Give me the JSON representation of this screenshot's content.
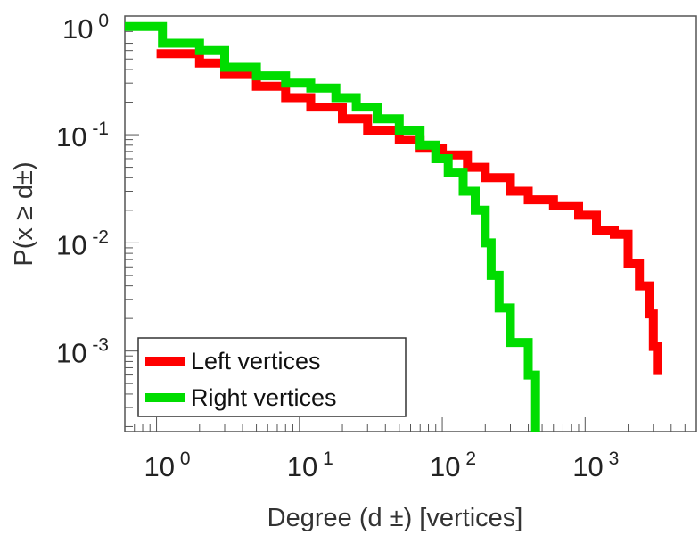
{
  "chart_data": {
    "type": "line",
    "scale": {
      "x": "log",
      "y": "log"
    },
    "title": "",
    "xlabel": "Degree (d  ±) [vertices]",
    "ylabel": "P(x ≥ d±)",
    "xlim": [
      0.6,
      6000
    ],
    "ylim": [
      0.00018,
      1.25
    ],
    "x_ticks": [
      {
        "value": 1,
        "base": "10",
        "exp": "0"
      },
      {
        "value": 10,
        "base": "10",
        "exp": "1"
      },
      {
        "value": 100,
        "base": "10",
        "exp": "2"
      },
      {
        "value": 1000,
        "base": "10",
        "exp": "3"
      }
    ],
    "y_ticks": [
      {
        "value": 1,
        "base": "10",
        "exp": "0"
      },
      {
        "value": 0.1,
        "base": "10",
        "exp": "-1"
      },
      {
        "value": 0.01,
        "base": "10",
        "exp": "-2"
      },
      {
        "value": 0.001,
        "base": "10",
        "exp": "-3"
      }
    ],
    "legend_position": "bottom-left",
    "series": [
      {
        "name": "Left vertices",
        "color": "#ff0000",
        "points": [
          [
            1,
            0.56
          ],
          [
            2,
            0.46
          ],
          [
            3,
            0.36
          ],
          [
            5,
            0.28
          ],
          [
            8,
            0.22
          ],
          [
            12,
            0.18
          ],
          [
            20,
            0.14
          ],
          [
            30,
            0.11
          ],
          [
            50,
            0.09
          ],
          [
            70,
            0.075
          ],
          [
            100,
            0.065
          ],
          [
            150,
            0.05
          ],
          [
            200,
            0.04
          ],
          [
            300,
            0.03
          ],
          [
            400,
            0.025
          ],
          [
            600,
            0.022
          ],
          [
            900,
            0.018
          ],
          [
            1200,
            0.013
          ],
          [
            1600,
            0.012
          ],
          [
            2000,
            0.0065
          ],
          [
            2400,
            0.004
          ],
          [
            2800,
            0.0022
          ],
          [
            3000,
            0.0011
          ],
          [
            3200,
            0.0006
          ]
        ]
      },
      {
        "name": "Right vertices",
        "color": "#00dd00",
        "points": [
          [
            0.6,
            1.0
          ],
          [
            1,
            1.0
          ],
          [
            1.1,
            0.7
          ],
          [
            2,
            0.6
          ],
          [
            3,
            0.42
          ],
          [
            5,
            0.35
          ],
          [
            8,
            0.3
          ],
          [
            12,
            0.27
          ],
          [
            18,
            0.22
          ],
          [
            25,
            0.18
          ],
          [
            35,
            0.14
          ],
          [
            50,
            0.11
          ],
          [
            70,
            0.08
          ],
          [
            90,
            0.06
          ],
          [
            110,
            0.045
          ],
          [
            140,
            0.03
          ],
          [
            170,
            0.02
          ],
          [
            200,
            0.01
          ],
          [
            220,
            0.005
          ],
          [
            250,
            0.0025
          ],
          [
            300,
            0.0012
          ],
          [
            400,
            0.0006
          ],
          [
            450,
            0.00018
          ]
        ]
      }
    ]
  }
}
